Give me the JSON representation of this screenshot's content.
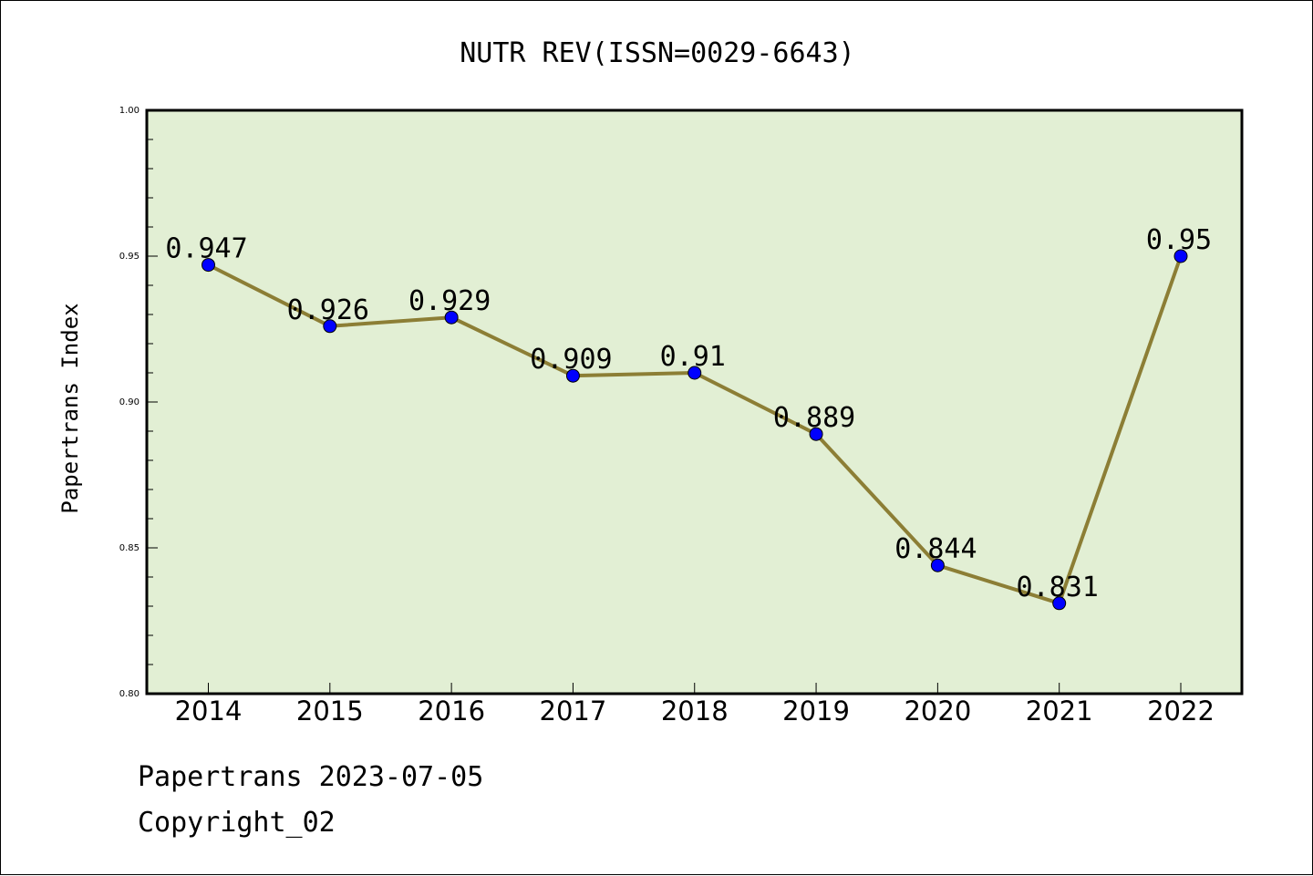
{
  "chart_data": {
    "type": "line",
    "title": "NUTR REV(ISSN=0029-6643)",
    "xlabel": "",
    "ylabel": "Papertrans Index",
    "x": [
      "2014",
      "2015",
      "2016",
      "2017",
      "2018",
      "2019",
      "2020",
      "2021",
      "2022"
    ],
    "series": [
      {
        "values": [
          0.947,
          0.926,
          0.929,
          0.909,
          0.91,
          0.889,
          0.844,
          0.831,
          0.95
        ],
        "labels": [
          "0.947",
          "0.926",
          "0.929",
          "0.909",
          "0.91",
          "0.889",
          "0.844",
          "0.831",
          "0.95"
        ]
      }
    ],
    "ylim": [
      0.8,
      1.0
    ],
    "yticks": [
      "0.80",
      "0.85",
      "0.90",
      "0.95",
      "1.00"
    ],
    "grid": false,
    "legend": "none"
  },
  "footer": {
    "date_line": "Papertrans 2023-07-05",
    "copyright": "Copyright_02"
  },
  "colors": {
    "plot_background": "#e2efd4",
    "line": "#8c7e35",
    "marker": "#0000ff"
  }
}
